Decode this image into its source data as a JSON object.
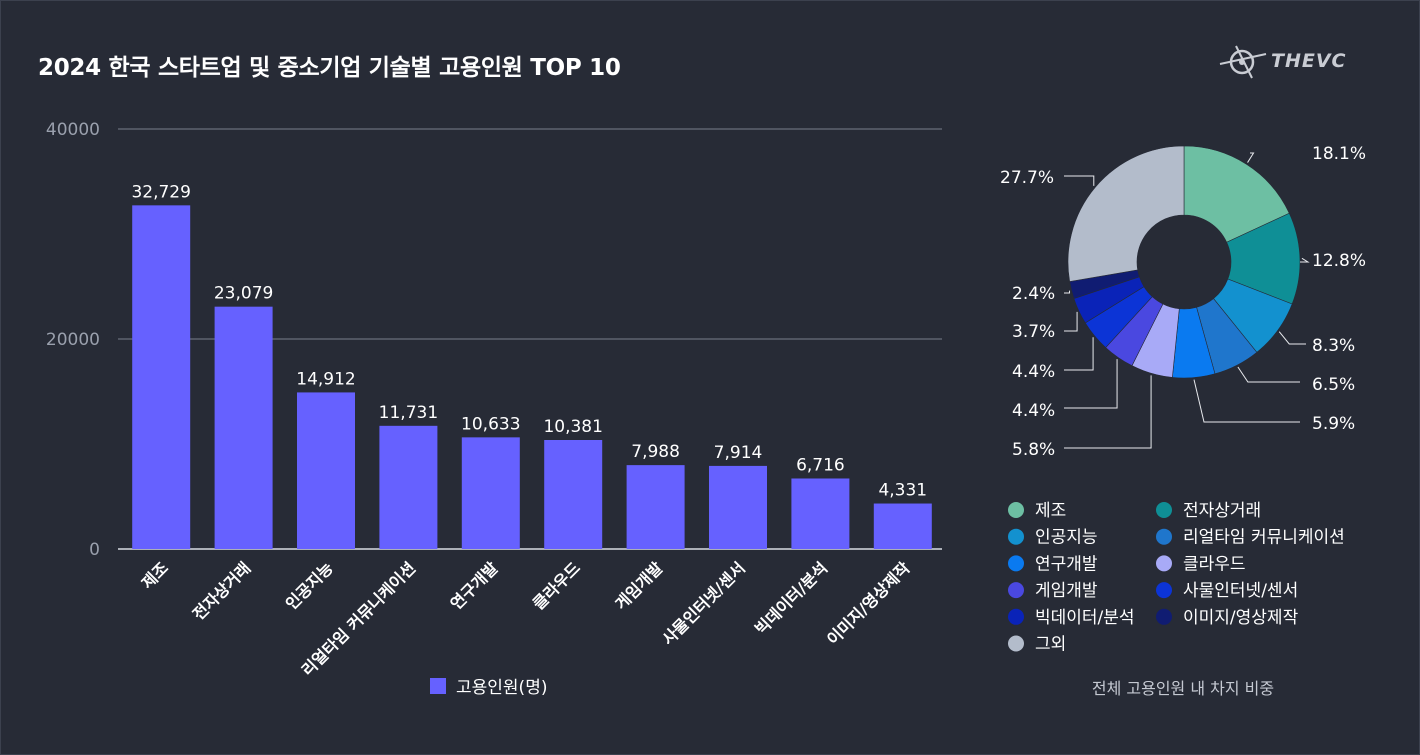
{
  "title": "2024 한국 스타트업 및 중소기업 기술별 고용인원 TOP 10",
  "logo": {
    "text": "THEVC",
    "icon": "satellite-logo-icon"
  },
  "chart_data": [
    {
      "type": "bar",
      "categories": [
        "제조",
        "전자상거래",
        "인공지능",
        "리얼타임 커뮤니케이션",
        "연구개발",
        "클라우드",
        "게임개발",
        "사물인터넷/센서",
        "빅데이터/분석",
        "이미지/영상제작"
      ],
      "values": [
        32729,
        23079,
        14912,
        11731,
        10633,
        10381,
        7988,
        7914,
        6716,
        4331
      ],
      "value_labels": [
        "32,729",
        "23,079",
        "14,912",
        "11,731",
        "10,633",
        "10,381",
        "7,988",
        "7,914",
        "6,716",
        "4,331"
      ],
      "ylim": [
        0,
        40000
      ],
      "yticks": [
        "0",
        "20000",
        "40000"
      ],
      "legend": "고용인원(명)",
      "color": "#6661ff",
      "grid": true
    },
    {
      "type": "pie",
      "style": "donut",
      "categories": [
        "제조",
        "전자상거래",
        "인공지능",
        "리얼타임 커뮤니케이션",
        "연구개발",
        "클라우드",
        "게임개발",
        "사물인터넷/센서",
        "빅데이터/분석",
        "이미지/영상제작",
        "그외"
      ],
      "values": [
        18.1,
        12.8,
        8.3,
        6.5,
        5.9,
        5.8,
        4.4,
        4.4,
        3.7,
        2.4,
        27.7
      ],
      "labels": [
        "18.1%",
        "12.8%",
        "8.3%",
        "6.5%",
        "5.9%",
        "5.8%",
        "4.4%",
        "4.4%",
        "3.7%",
        "2.4%",
        "27.7%"
      ],
      "colors": [
        "#6dbfa3",
        "#0f8f96",
        "#1391cf",
        "#1f76cc",
        "#0a7af0",
        "#a8aaf7",
        "#4a48e0",
        "#0c34d6",
        "#0a23b8",
        "#101c72",
        "#b3bccb"
      ],
      "caption": "전체 고용인원 내 차지 비중"
    }
  ]
}
